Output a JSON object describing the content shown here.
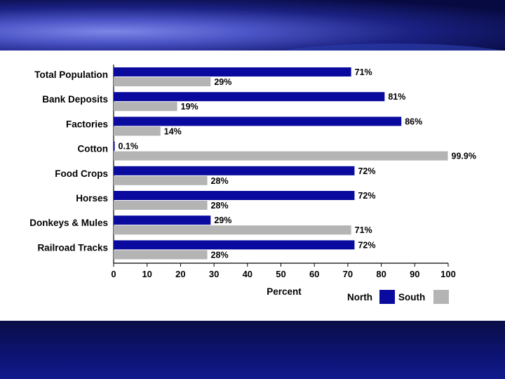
{
  "chart_data": {
    "type": "bar",
    "orientation": "horizontal",
    "categories": [
      "Total Population",
      "Bank Deposits",
      "Factories",
      "Cotton",
      "Food Crops",
      "Horses",
      "Donkeys & Mules",
      "Railroad Tracks"
    ],
    "series": [
      {
        "name": "North",
        "color": "#0a0a9e",
        "values": [
          71,
          81,
          86,
          0.1,
          72,
          72,
          29,
          72
        ],
        "labels": [
          "71%",
          "81%",
          "86%",
          "0.1%",
          "72%",
          "72%",
          "29%",
          "72%"
        ]
      },
      {
        "name": "South",
        "color": "#b4b4b4",
        "values": [
          29,
          19,
          14,
          99.9,
          28,
          28,
          71,
          28
        ],
        "labels": [
          "29%",
          "19%",
          "14%",
          "99.9%",
          "28%",
          "28%",
          "71%",
          "28%"
        ]
      }
    ],
    "xlabel": "Percent",
    "xlim": [
      0,
      100
    ],
    "xticks": [
      "0",
      "10",
      "20",
      "30",
      "40",
      "50",
      "60",
      "70",
      "80",
      "90",
      "100"
    ],
    "legend": {
      "position": "bottom-right",
      "entries": [
        "North",
        "South"
      ]
    }
  }
}
